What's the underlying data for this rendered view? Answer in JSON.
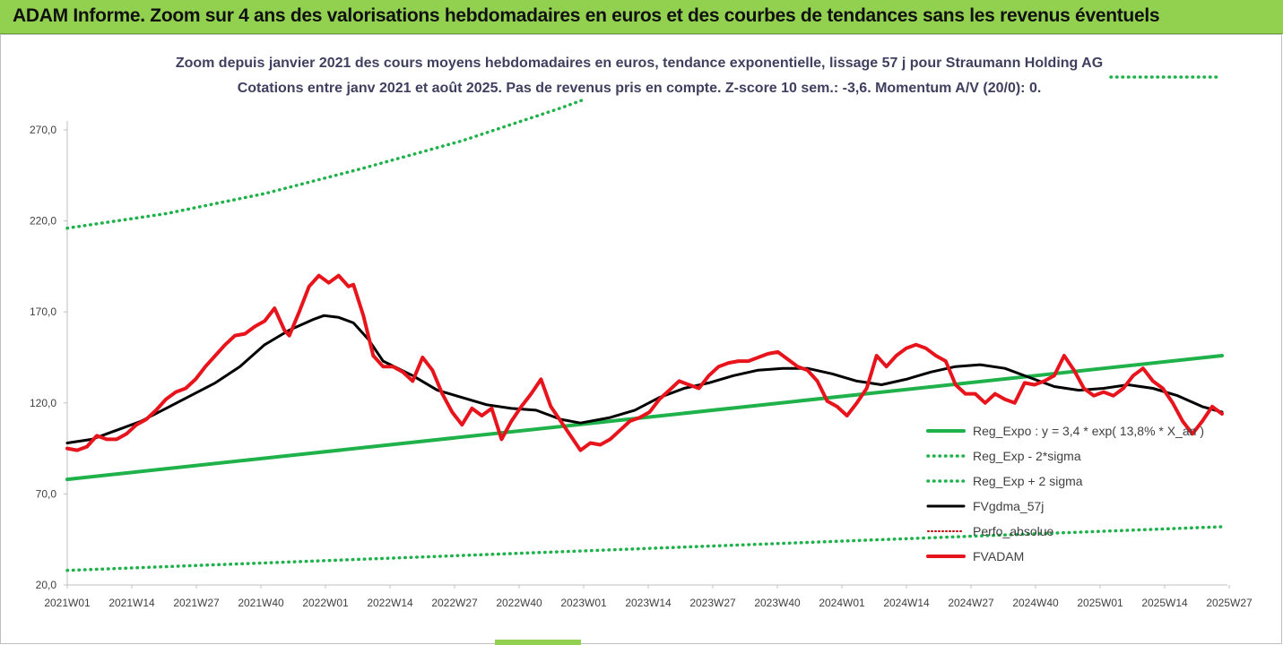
{
  "banner": {
    "title": "ADAM Informe. Zoom sur 4 ans des valorisations hebdomadaires en euros et des courbes de tendances sans les revenus éventuels"
  },
  "chart_data": {
    "type": "line",
    "title_line1": "Zoom depuis janvier 2021 des cours moyens hebdomadaires en euros, tendance exponentielle, lissage 57 j pour Straumann Holding AG",
    "title_line2": "Cotations entre janv 2021 et août 2025.  Pas de revenus pris en compte. Z-score 10 sem.: -3,6. Momentum A/V (20/0): 0.",
    "x_ticks": [
      "2021W01",
      "2021W14",
      "2021W27",
      "2021W40",
      "2022W01",
      "2022W14",
      "2022W27",
      "2022W40",
      "2023W01",
      "2023W14",
      "2023W27",
      "2023W40",
      "2024W01",
      "2024W14",
      "2024W27",
      "2024W40",
      "2025W01",
      "2025W14",
      "2025W27"
    ],
    "y_ticks": [
      "20,0",
      "70,0",
      "120,0",
      "170,0",
      "220,0",
      "270,0"
    ],
    "ylim": [
      20,
      290
    ],
    "grid": false,
    "legend_position": "right",
    "colors": {
      "reg_expo": "#1fb14a",
      "reg_band": "#1fb14a",
      "fvgdma": "#000000",
      "perfo": "#c00000",
      "fvadam": "#e8141c",
      "banner": "#92d050",
      "title_text": "#3f3f5f"
    },
    "series": [
      {
        "name": "Reg_Expo : y = 3,4 * exp( 13,8% * X_an )",
        "key": "reg_expo",
        "style": "solid",
        "points": [
          [
            0,
            78
          ],
          [
            234,
            146
          ]
        ]
      },
      {
        "name": "Reg_Exp - 2*sigma",
        "key": "reg_minus",
        "style": "dotted",
        "points": [
          [
            0,
            28
          ],
          [
            234,
            52
          ]
        ]
      },
      {
        "name": "Reg_Exp + 2 sigma",
        "key": "reg_plus",
        "style": "dotted",
        "points": [
          [
            0,
            216
          ],
          [
            20,
            224
          ],
          [
            40,
            235
          ],
          [
            60,
            249
          ],
          [
            80,
            264
          ],
          [
            100,
            282
          ],
          [
            105,
            287
          ]
        ]
      },
      {
        "name": "FVgdma_57j",
        "key": "fvgdma",
        "style": "solid",
        "points": [
          [
            0,
            98
          ],
          [
            5,
            100
          ],
          [
            10,
            105
          ],
          [
            15,
            110
          ],
          [
            20,
            117
          ],
          [
            25,
            124
          ],
          [
            30,
            131
          ],
          [
            35,
            140
          ],
          [
            40,
            152
          ],
          [
            45,
            160
          ],
          [
            50,
            166
          ],
          [
            52,
            168
          ],
          [
            55,
            167
          ],
          [
            58,
            164
          ],
          [
            61,
            155
          ],
          [
            64,
            143
          ],
          [
            67,
            139
          ],
          [
            70,
            135
          ],
          [
            75,
            127
          ],
          [
            80,
            123
          ],
          [
            85,
            119
          ],
          [
            90,
            117
          ],
          [
            95,
            116
          ],
          [
            100,
            111
          ],
          [
            104,
            109
          ],
          [
            110,
            112
          ],
          [
            115,
            116
          ],
          [
            120,
            123
          ],
          [
            125,
            128
          ],
          [
            130,
            131
          ],
          [
            135,
            135
          ],
          [
            140,
            138
          ],
          [
            145,
            139
          ],
          [
            150,
            139
          ],
          [
            155,
            136
          ],
          [
            160,
            132
          ],
          [
            165,
            130
          ],
          [
            170,
            133
          ],
          [
            175,
            137
          ],
          [
            180,
            140
          ],
          [
            185,
            141
          ],
          [
            190,
            139
          ],
          [
            195,
            134
          ],
          [
            200,
            129
          ],
          [
            205,
            127
          ],
          [
            210,
            128
          ],
          [
            215,
            130
          ],
          [
            220,
            128
          ],
          [
            225,
            124
          ],
          [
            230,
            118
          ],
          [
            234,
            115
          ]
        ]
      },
      {
        "name": "Perfo_absolue",
        "key": "perfo",
        "style": "dotted",
        "points": []
      },
      {
        "name": "FVADAM",
        "key": "fvadam",
        "style": "solid-thick",
        "points": [
          [
            0,
            95
          ],
          [
            2,
            94
          ],
          [
            4,
            96
          ],
          [
            6,
            102
          ],
          [
            8,
            100
          ],
          [
            10,
            100
          ],
          [
            12,
            103
          ],
          [
            14,
            108
          ],
          [
            16,
            111
          ],
          [
            18,
            116
          ],
          [
            20,
            122
          ],
          [
            22,
            126
          ],
          [
            24,
            128
          ],
          [
            26,
            133
          ],
          [
            28,
            140
          ],
          [
            30,
            146
          ],
          [
            32,
            152
          ],
          [
            34,
            157
          ],
          [
            36,
            158
          ],
          [
            38,
            162
          ],
          [
            40,
            165
          ],
          [
            42,
            172
          ],
          [
            44,
            160
          ],
          [
            45,
            157
          ],
          [
            47,
            170
          ],
          [
            49,
            184
          ],
          [
            51,
            190
          ],
          [
            53,
            186
          ],
          [
            55,
            190
          ],
          [
            57,
            184
          ],
          [
            58,
            185
          ],
          [
            60,
            168
          ],
          [
            62,
            146
          ],
          [
            64,
            140
          ],
          [
            66,
            140
          ],
          [
            68,
            137
          ],
          [
            70,
            132
          ],
          [
            72,
            145
          ],
          [
            74,
            138
          ],
          [
            76,
            125
          ],
          [
            78,
            115
          ],
          [
            80,
            108
          ],
          [
            82,
            117
          ],
          [
            84,
            113
          ],
          [
            86,
            117
          ],
          [
            88,
            100
          ],
          [
            90,
            110
          ],
          [
            92,
            118
          ],
          [
            94,
            125
          ],
          [
            96,
            133
          ],
          [
            98,
            118
          ],
          [
            100,
            110
          ],
          [
            102,
            102
          ],
          [
            104,
            94
          ],
          [
            106,
            98
          ],
          [
            108,
            97
          ],
          [
            110,
            100
          ],
          [
            112,
            105
          ],
          [
            114,
            110
          ],
          [
            116,
            112
          ],
          [
            118,
            115
          ],
          [
            120,
            122
          ],
          [
            122,
            127
          ],
          [
            124,
            132
          ],
          [
            126,
            130
          ],
          [
            128,
            128
          ],
          [
            130,
            135
          ],
          [
            132,
            140
          ],
          [
            134,
            142
          ],
          [
            136,
            143
          ],
          [
            138,
            143
          ],
          [
            140,
            145
          ],
          [
            142,
            147
          ],
          [
            144,
            148
          ],
          [
            146,
            144
          ],
          [
            148,
            140
          ],
          [
            150,
            138
          ],
          [
            152,
            132
          ],
          [
            154,
            121
          ],
          [
            156,
            118
          ],
          [
            158,
            113
          ],
          [
            160,
            120
          ],
          [
            162,
            128
          ],
          [
            164,
            146
          ],
          [
            166,
            140
          ],
          [
            168,
            146
          ],
          [
            170,
            150
          ],
          [
            172,
            152
          ],
          [
            174,
            150
          ],
          [
            176,
            146
          ],
          [
            178,
            143
          ],
          [
            180,
            130
          ],
          [
            182,
            125
          ],
          [
            184,
            125
          ],
          [
            186,
            120
          ],
          [
            188,
            125
          ],
          [
            190,
            122
          ],
          [
            192,
            120
          ],
          [
            194,
            131
          ],
          [
            196,
            130
          ],
          [
            198,
            132
          ],
          [
            200,
            135
          ],
          [
            202,
            146
          ],
          [
            204,
            138
          ],
          [
            206,
            128
          ],
          [
            208,
            124
          ],
          [
            210,
            126
          ],
          [
            212,
            124
          ],
          [
            214,
            128
          ],
          [
            216,
            135
          ],
          [
            218,
            139
          ],
          [
            220,
            132
          ],
          [
            222,
            128
          ],
          [
            224,
            120
          ],
          [
            226,
            110
          ],
          [
            228,
            103
          ],
          [
            230,
            110
          ],
          [
            232,
            118
          ],
          [
            234,
            114
          ]
        ]
      }
    ]
  }
}
